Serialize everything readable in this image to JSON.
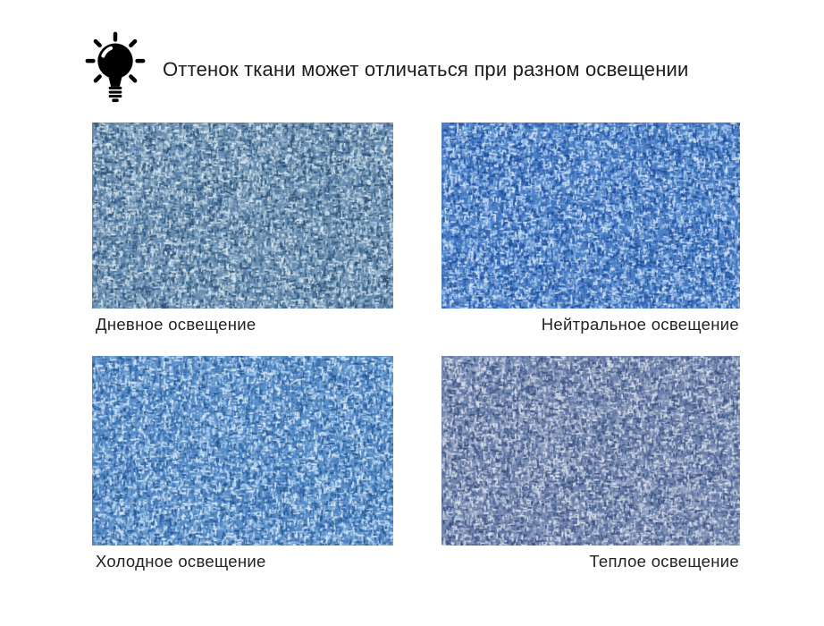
{
  "page": {
    "background": "#ffffff",
    "text_color": "#1c1c1c",
    "header": {
      "icon": "lightbulb-idea-icon",
      "icon_color": "#000000",
      "text": "Оттенок ткани может отличаться при разном освещении"
    },
    "swatches": [
      {
        "label": "Дневное освещение",
        "caption_align": "left",
        "palette": [
          "#2c5176",
          "#476f98",
          "#6b90b3",
          "#8fafc9",
          "#b7cedd",
          "#dde9f0"
        ]
      },
      {
        "label": "Нейтральное освещение",
        "caption_align": "right",
        "palette": [
          "#1b4a97",
          "#3264af",
          "#4c80c7",
          "#7ca8dd",
          "#abccee",
          "#d7e6f7"
        ]
      },
      {
        "label": "Холодное освещение",
        "caption_align": "left",
        "palette": [
          "#235693",
          "#3b73b4",
          "#5a8ec9",
          "#86b1dc",
          "#b4d3ed",
          "#ddecf8"
        ]
      },
      {
        "label": "Теплое освещение",
        "caption_align": "right",
        "palette": [
          "#39507f",
          "#53689c",
          "#7287af",
          "#98a8c6",
          "#bec8da",
          "#e0e5ee"
        ]
      }
    ]
  }
}
